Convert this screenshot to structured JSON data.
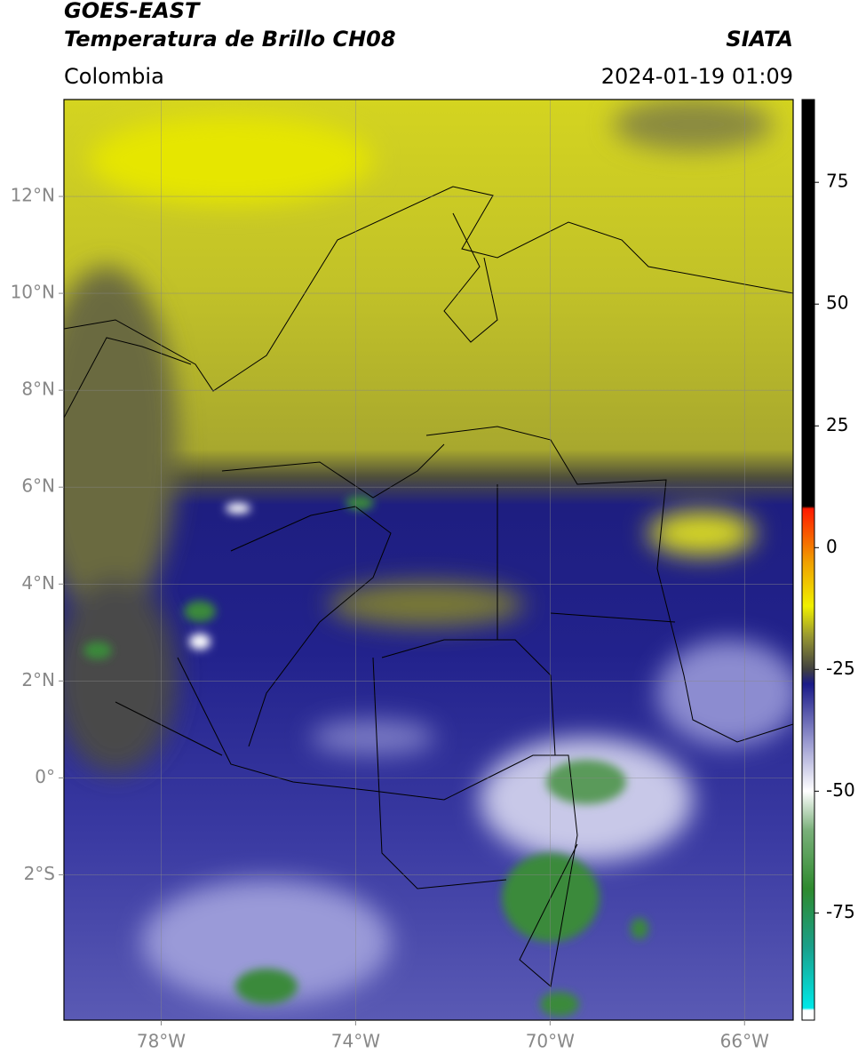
{
  "header": {
    "title": "GOES-EAST",
    "subtitle": "Temperatura de Brillo CH08",
    "source": "SIATA",
    "region": "Colombia",
    "datetime": "2024-01-19 01:09"
  },
  "map": {
    "xlim": [
      -80,
      -65
    ],
    "ylim": [
      -5,
      14
    ],
    "xticks": [
      {
        "value": -78,
        "label": "78°W"
      },
      {
        "value": -74,
        "label": "74°W"
      },
      {
        "value": -70,
        "label": "70°W"
      },
      {
        "value": -66,
        "label": "66°W"
      }
    ],
    "yticks": [
      {
        "value": 12,
        "label": "12°N"
      },
      {
        "value": 10,
        "label": "10°N"
      },
      {
        "value": 8,
        "label": "8°N"
      },
      {
        "value": 6,
        "label": "6°N"
      },
      {
        "value": 4,
        "label": "4°N"
      },
      {
        "value": 2,
        "label": "2°N"
      },
      {
        "value": 0,
        "label": "0°"
      },
      {
        "value": -2,
        "label": "2°S"
      }
    ],
    "grid": true
  },
  "colorbar": {
    "lim": [
      -97,
      92
    ],
    "ticks": [
      75,
      50,
      25,
      0,
      -25,
      -50,
      -75
    ],
    "stops": [
      {
        "value": -97,
        "color": "#ffffff"
      },
      {
        "value": -95,
        "color": "#ffffff"
      },
      {
        "value": -94.5,
        "color": "#00e8e8"
      },
      {
        "value": -82,
        "color": "#1aa08a"
      },
      {
        "value": -70,
        "color": "#2e8a2e"
      },
      {
        "value": -58,
        "color": "#7ab07a"
      },
      {
        "value": -50,
        "color": "#ffffff"
      },
      {
        "value": -40,
        "color": "#9a9ad0"
      },
      {
        "value": -28,
        "color": "#1a1a88"
      },
      {
        "value": -25,
        "color": "#404040"
      },
      {
        "value": -18,
        "color": "#9a9a30"
      },
      {
        "value": -12,
        "color": "#f0f000"
      },
      {
        "value": -3,
        "color": "#f0a000"
      },
      {
        "value": 8,
        "color": "#ff1a00"
      },
      {
        "value": 8.5,
        "color": "#000000"
      },
      {
        "value": 92,
        "color": "#000000"
      }
    ]
  }
}
